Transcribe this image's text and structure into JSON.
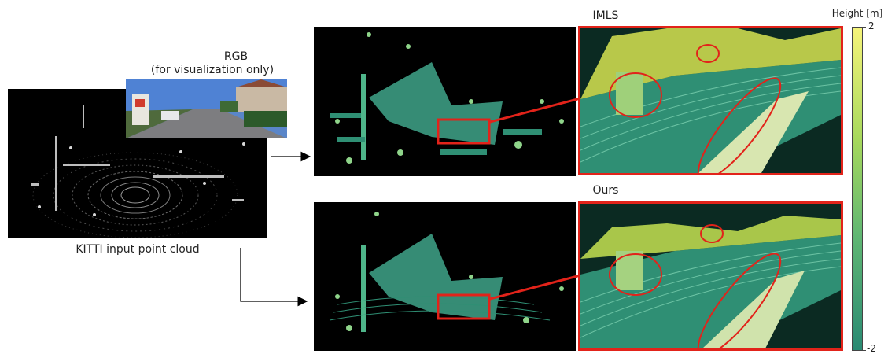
{
  "input": {
    "rgb_title": "RGB",
    "rgb_subtitle": "(for visualization only)",
    "caption": "KITTI input point cloud"
  },
  "methods": [
    {
      "title": "IMLS"
    },
    {
      "title": "Ours"
    }
  ],
  "colorbar": {
    "title": "Height [m]",
    "max_label": "2",
    "min_label": "-2",
    "color_top": "#f6f47a",
    "color_bottom": "#2a8a73"
  },
  "colors": {
    "highlight": "#e2231a",
    "arrow": "#000000",
    "surface": "#3fa58a",
    "surface_light": "#8fd48a"
  }
}
